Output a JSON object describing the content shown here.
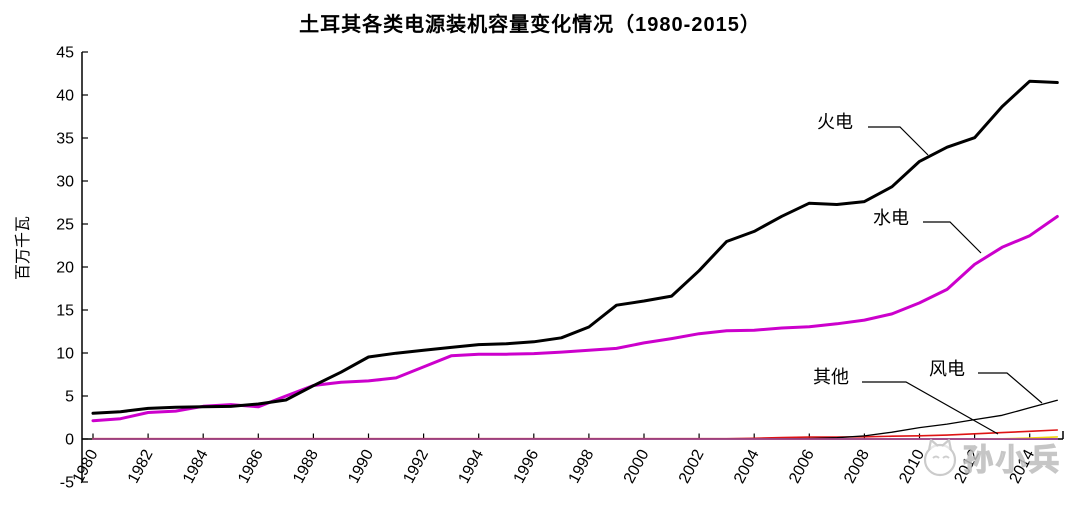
{
  "title": "土耳其各类电源装机容量变化情况（1980-2015）",
  "watermark": {
    "text": "孙小兵"
  },
  "chart_data": {
    "type": "line",
    "title": "土耳其各类电源装机容量变化情况（1980-2015）",
    "xlabel": "",
    "ylabel": "百万千瓦",
    "ylim": [
      -5,
      45
    ],
    "xlim": [
      1980,
      2015
    ],
    "grid": false,
    "legend_position": "inline-annotations",
    "yticks": [
      -5,
      0,
      5,
      10,
      15,
      20,
      25,
      30,
      35,
      40,
      45
    ],
    "xticks": [
      1980,
      1982,
      1984,
      1986,
      1988,
      1990,
      1992,
      1994,
      1996,
      1998,
      2000,
      2002,
      2004,
      2006,
      2008,
      2010,
      2012,
      2014
    ],
    "x": [
      1980,
      1981,
      1982,
      1983,
      1984,
      1985,
      1986,
      1987,
      1988,
      1989,
      1990,
      1991,
      1992,
      1993,
      1994,
      1995,
      1996,
      1997,
      1998,
      1999,
      2000,
      2001,
      2002,
      2003,
      2004,
      2005,
      2006,
      2007,
      2008,
      2009,
      2010,
      2011,
      2012,
      2013,
      2014,
      2015
    ],
    "series": [
      {
        "name": "其他",
        "color": "#DE1414",
        "width": 1.6,
        "values": [
          0.03,
          0.03,
          0.03,
          0.03,
          0.03,
          0.03,
          0.03,
          0.03,
          0.03,
          0.03,
          0.03,
          0.03,
          0.03,
          0.03,
          0.03,
          0.03,
          0.03,
          0.03,
          0.03,
          0.03,
          0.03,
          0.03,
          0.03,
          0.03,
          0.08,
          0.18,
          0.22,
          0.23,
          0.26,
          0.32,
          0.37,
          0.45,
          0.6,
          0.75,
          0.9,
          1.05
        ]
      },
      {
        "name": "风电",
        "color": "#000000",
        "width": 1.3,
        "values": [
          0.01,
          0.01,
          0.01,
          0.01,
          0.01,
          0.01,
          0.01,
          0.01,
          0.01,
          0.01,
          0.01,
          0.01,
          0.01,
          0.01,
          0.01,
          0.01,
          0.01,
          0.01,
          0.01,
          0.01,
          0.01,
          0.01,
          0.01,
          0.01,
          0.01,
          0.02,
          0.06,
          0.15,
          0.36,
          0.79,
          1.32,
          1.73,
          2.26,
          2.76,
          3.63,
          4.5
        ]
      },
      {
        "name": "",
        "color": "#F2D50F",
        "width": 1.6,
        "values": [
          0,
          0,
          0,
          0,
          0,
          0,
          0,
          0,
          0,
          0,
          0,
          0,
          0,
          0,
          0,
          0,
          0,
          0,
          0,
          0,
          0,
          0,
          0,
          0,
          0,
          0,
          0,
          0,
          0,
          0,
          0,
          0,
          0,
          0.02,
          0.1,
          0.25
        ]
      },
      {
        "name": "",
        "color": "#9A30A0",
        "width": 1.6,
        "values": [
          0,
          0,
          0,
          0,
          0,
          0,
          0,
          0,
          0,
          0,
          0,
          0,
          0,
          0,
          0,
          0,
          0,
          0,
          0,
          0,
          0,
          0,
          0,
          0,
          0,
          0,
          0,
          0,
          0,
          0,
          0,
          0,
          0,
          0,
          0,
          0
        ]
      },
      {
        "name": "水电",
        "color": "#CC00CC",
        "width": 3,
        "values": [
          2.13,
          2.36,
          3.08,
          3.24,
          3.8,
          4.0,
          3.75,
          5.0,
          6.22,
          6.6,
          6.76,
          7.11,
          8.38,
          9.68,
          9.86,
          9.86,
          9.93,
          10.1,
          10.31,
          10.54,
          11.18,
          11.67,
          12.24,
          12.58,
          12.65,
          12.91,
          13.06,
          13.39,
          13.83,
          14.55,
          15.83,
          17.4,
          20.3,
          22.29,
          23.64,
          25.87
        ]
      },
      {
        "name": "火电",
        "color": "#000000",
        "width": 3,
        "values": [
          2.99,
          3.18,
          3.56,
          3.69,
          3.76,
          3.79,
          4.07,
          4.54,
          6.2,
          7.77,
          9.54,
          9.98,
          10.32,
          10.65,
          10.98,
          11.07,
          11.3,
          11.77,
          13.02,
          15.56,
          16.05,
          16.62,
          19.57,
          22.97,
          24.14,
          25.9,
          27.42,
          27.27,
          27.6,
          29.34,
          32.28,
          33.93,
          35.03,
          38.65,
          41.6,
          41.45
        ]
      }
    ],
    "annotations": [
      {
        "label": "火电"
      },
      {
        "label": "水电"
      },
      {
        "label": "其他"
      },
      {
        "label": "风电"
      }
    ]
  }
}
